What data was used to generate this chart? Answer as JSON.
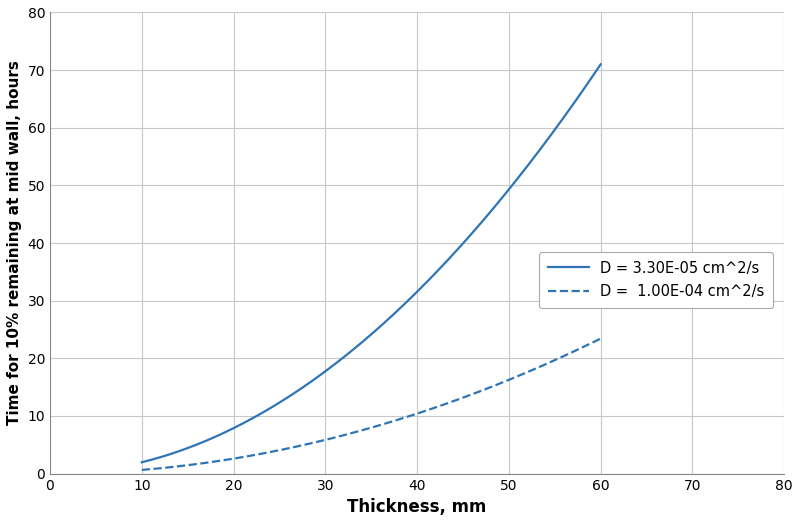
{
  "title": "",
  "xlabel": "Thickness, mm",
  "ylabel": "Time for 10% remaining at mid wall, hours",
  "xlim": [
    0,
    80
  ],
  "ylim": [
    0,
    80
  ],
  "xticks": [
    0,
    10,
    20,
    30,
    40,
    50,
    60,
    70,
    80
  ],
  "yticks": [
    0,
    10,
    20,
    30,
    40,
    50,
    60,
    70,
    80
  ],
  "D1": 3.3e-05,
  "D2": 0.0001,
  "label1": "D = 3.30E-05 cm^2/s",
  "label2": "D =  1.00E-04 cm^2/s",
  "line_color": "#2E75B6",
  "thickness_mm_min": 10,
  "thickness_mm_max": 60,
  "background_color": "#ffffff",
  "grid_color": "#c8c8c8",
  "coeff": 0.2343
}
